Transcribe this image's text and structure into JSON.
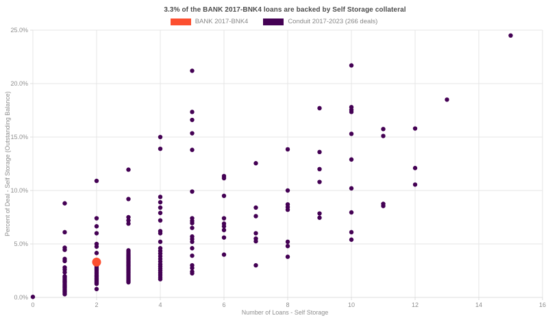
{
  "title": "3.3% of the BANK 2017-BNK4 loans are backed by Self Storage collateral",
  "legend": [
    {
      "label": "BANK 2017-BNK4",
      "color": "#fc4f30"
    },
    {
      "label": "Conduit 2017-2023 (266 deals)",
      "color": "#440154"
    }
  ],
  "chart_data": {
    "type": "scatter",
    "title": "3.3% of the BANK 2017-BNK4 loans are backed by Self Storage collateral",
    "xlabel": "Number of Loans - Self Storage",
    "ylabel": "Percent of Deal - Self Storage (Outstanding Balance)",
    "xlim": [
      0,
      16
    ],
    "ylim": [
      0,
      25
    ],
    "x_tick_values": [
      0,
      2,
      4,
      6,
      8,
      10,
      12,
      14,
      16
    ],
    "x_tick_labels": [
      "0",
      "2",
      "4",
      "6",
      "8",
      "10",
      "12",
      "14",
      "16"
    ],
    "y_tick_values": [
      0,
      5,
      10,
      15,
      20,
      25
    ],
    "y_tick_labels": [
      "0.0%",
      "5.0%",
      "10.0%",
      "15.0%",
      "20.0%",
      "25.0%"
    ],
    "grid": true,
    "grid_color": "#e6e6e6",
    "axis_color": "#dcdcdc",
    "legend_position": "top-center",
    "series": [
      {
        "name": "Conduit 2017-2023 (266 deals)",
        "color": "#440154",
        "marker_size": 3.2,
        "points": [
          [
            0,
            0.05
          ],
          [
            1,
            8.8
          ],
          [
            1,
            6.1
          ],
          [
            1,
            4.65
          ],
          [
            1,
            4.45
          ],
          [
            1,
            3.6
          ],
          [
            1,
            3.4
          ],
          [
            1,
            2.8
          ],
          [
            1,
            2.6
          ],
          [
            1,
            2.35
          ],
          [
            1,
            1.98
          ],
          [
            1,
            1.86
          ],
          [
            1,
            1.74
          ],
          [
            1,
            1.62
          ],
          [
            1,
            1.5
          ],
          [
            1,
            1.38
          ],
          [
            1,
            1.26
          ],
          [
            1,
            1.14
          ],
          [
            1,
            1.02
          ],
          [
            1,
            0.9
          ],
          [
            1,
            0.78
          ],
          [
            1,
            0.66
          ],
          [
            1,
            0.54
          ],
          [
            1,
            0.42
          ],
          [
            1,
            0.3
          ],
          [
            2,
            10.9
          ],
          [
            2,
            7.4
          ],
          [
            2,
            6.65
          ],
          [
            2,
            6.0
          ],
          [
            2,
            5.0
          ],
          [
            2,
            4.75
          ],
          [
            2,
            4.15
          ],
          [
            2,
            3.0
          ],
          [
            2,
            2.87
          ],
          [
            2,
            2.74
          ],
          [
            2,
            2.61
          ],
          [
            2,
            2.48
          ],
          [
            2,
            2.35
          ],
          [
            2,
            2.22
          ],
          [
            2,
            2.05
          ],
          [
            2,
            1.92
          ],
          [
            2,
            1.79
          ],
          [
            2,
            1.66
          ],
          [
            2,
            1.53
          ],
          [
            2,
            1.4
          ],
          [
            2,
            1.27
          ],
          [
            2,
            0.78
          ],
          [
            3,
            11.95
          ],
          [
            3,
            9.2
          ],
          [
            3,
            7.5
          ],
          [
            3,
            7.2
          ],
          [
            3,
            6.9
          ],
          [
            3,
            4.4
          ],
          [
            3,
            4.27
          ],
          [
            3,
            4.14
          ],
          [
            3,
            4.01
          ],
          [
            3,
            3.88
          ],
          [
            3,
            3.75
          ],
          [
            3,
            3.62
          ],
          [
            3,
            3.49
          ],
          [
            3,
            3.36
          ],
          [
            3,
            3.23
          ],
          [
            3,
            3.1
          ],
          [
            3,
            2.97
          ],
          [
            3,
            2.84
          ],
          [
            3,
            2.71
          ],
          [
            3,
            2.58
          ],
          [
            3,
            2.45
          ],
          [
            3,
            2.32
          ],
          [
            3,
            2.19
          ],
          [
            3,
            2.06
          ],
          [
            3,
            1.93
          ],
          [
            3,
            1.8
          ],
          [
            3,
            1.67
          ],
          [
            3,
            1.54
          ],
          [
            3,
            1.41
          ],
          [
            4,
            15.0
          ],
          [
            4,
            13.9
          ],
          [
            4,
            9.4
          ],
          [
            4,
            8.9
          ],
          [
            4,
            8.4
          ],
          [
            4,
            7.9
          ],
          [
            4,
            7.2
          ],
          [
            4,
            6.2
          ],
          [
            4,
            6.0
          ],
          [
            4,
            5.2
          ],
          [
            4,
            4.6
          ],
          [
            4,
            4.35
          ],
          [
            4,
            4.1
          ],
          [
            4,
            3.85
          ],
          [
            4,
            3.6
          ],
          [
            4,
            3.35
          ],
          [
            4,
            3.1
          ],
          [
            4,
            2.9
          ],
          [
            4,
            2.7
          ],
          [
            4,
            2.5
          ],
          [
            4,
            2.3
          ],
          [
            4,
            2.1
          ],
          [
            4,
            1.9
          ],
          [
            4,
            1.7
          ],
          [
            5,
            21.2
          ],
          [
            5,
            17.35
          ],
          [
            5,
            16.6
          ],
          [
            5,
            15.35
          ],
          [
            5,
            13.8
          ],
          [
            5,
            9.9
          ],
          [
            5,
            7.4
          ],
          [
            5,
            7.15
          ],
          [
            5,
            6.95
          ],
          [
            5,
            6.5
          ],
          [
            5,
            5.7
          ],
          [
            5,
            5.45
          ],
          [
            5,
            5.2
          ],
          [
            5,
            4.6
          ],
          [
            5,
            3.9
          ],
          [
            5,
            3.0
          ],
          [
            5,
            2.75
          ],
          [
            5,
            2.4
          ],
          [
            5,
            2.25
          ],
          [
            6,
            11.35
          ],
          [
            6,
            11.15
          ],
          [
            6,
            9.5
          ],
          [
            6,
            7.4
          ],
          [
            6,
            6.9
          ],
          [
            6,
            6.65
          ],
          [
            6,
            6.3
          ],
          [
            6,
            5.6
          ],
          [
            6,
            4.0
          ],
          [
            7,
            12.55
          ],
          [
            7,
            8.4
          ],
          [
            7,
            7.6
          ],
          [
            7,
            6.0
          ],
          [
            7,
            5.5
          ],
          [
            7,
            5.25
          ],
          [
            7,
            3.0
          ],
          [
            8,
            13.85
          ],
          [
            8,
            10.0
          ],
          [
            8,
            8.7
          ],
          [
            8,
            8.45
          ],
          [
            8,
            8.2
          ],
          [
            8,
            5.2
          ],
          [
            8,
            4.8
          ],
          [
            8,
            3.8
          ],
          [
            9,
            17.7
          ],
          [
            9,
            13.6
          ],
          [
            9,
            12.0
          ],
          [
            9,
            10.8
          ],
          [
            9,
            7.85
          ],
          [
            9,
            7.45
          ],
          [
            10,
            21.7
          ],
          [
            10,
            17.8
          ],
          [
            10,
            17.55
          ],
          [
            10,
            17.35
          ],
          [
            10,
            15.3
          ],
          [
            10,
            12.9
          ],
          [
            10,
            10.2
          ],
          [
            10,
            7.95
          ],
          [
            10,
            6.1
          ],
          [
            10,
            5.4
          ],
          [
            11,
            15.75
          ],
          [
            11,
            15.1
          ],
          [
            11,
            8.75
          ],
          [
            11,
            8.55
          ],
          [
            12,
            15.8
          ],
          [
            12,
            12.1
          ],
          [
            12,
            10.55
          ],
          [
            13,
            18.5
          ],
          [
            15,
            24.5
          ]
        ]
      },
      {
        "name": "BANK 2017-BNK4",
        "color": "#fc4f30",
        "marker_size": 6.5,
        "points": [
          [
            2,
            3.3
          ]
        ]
      }
    ]
  }
}
